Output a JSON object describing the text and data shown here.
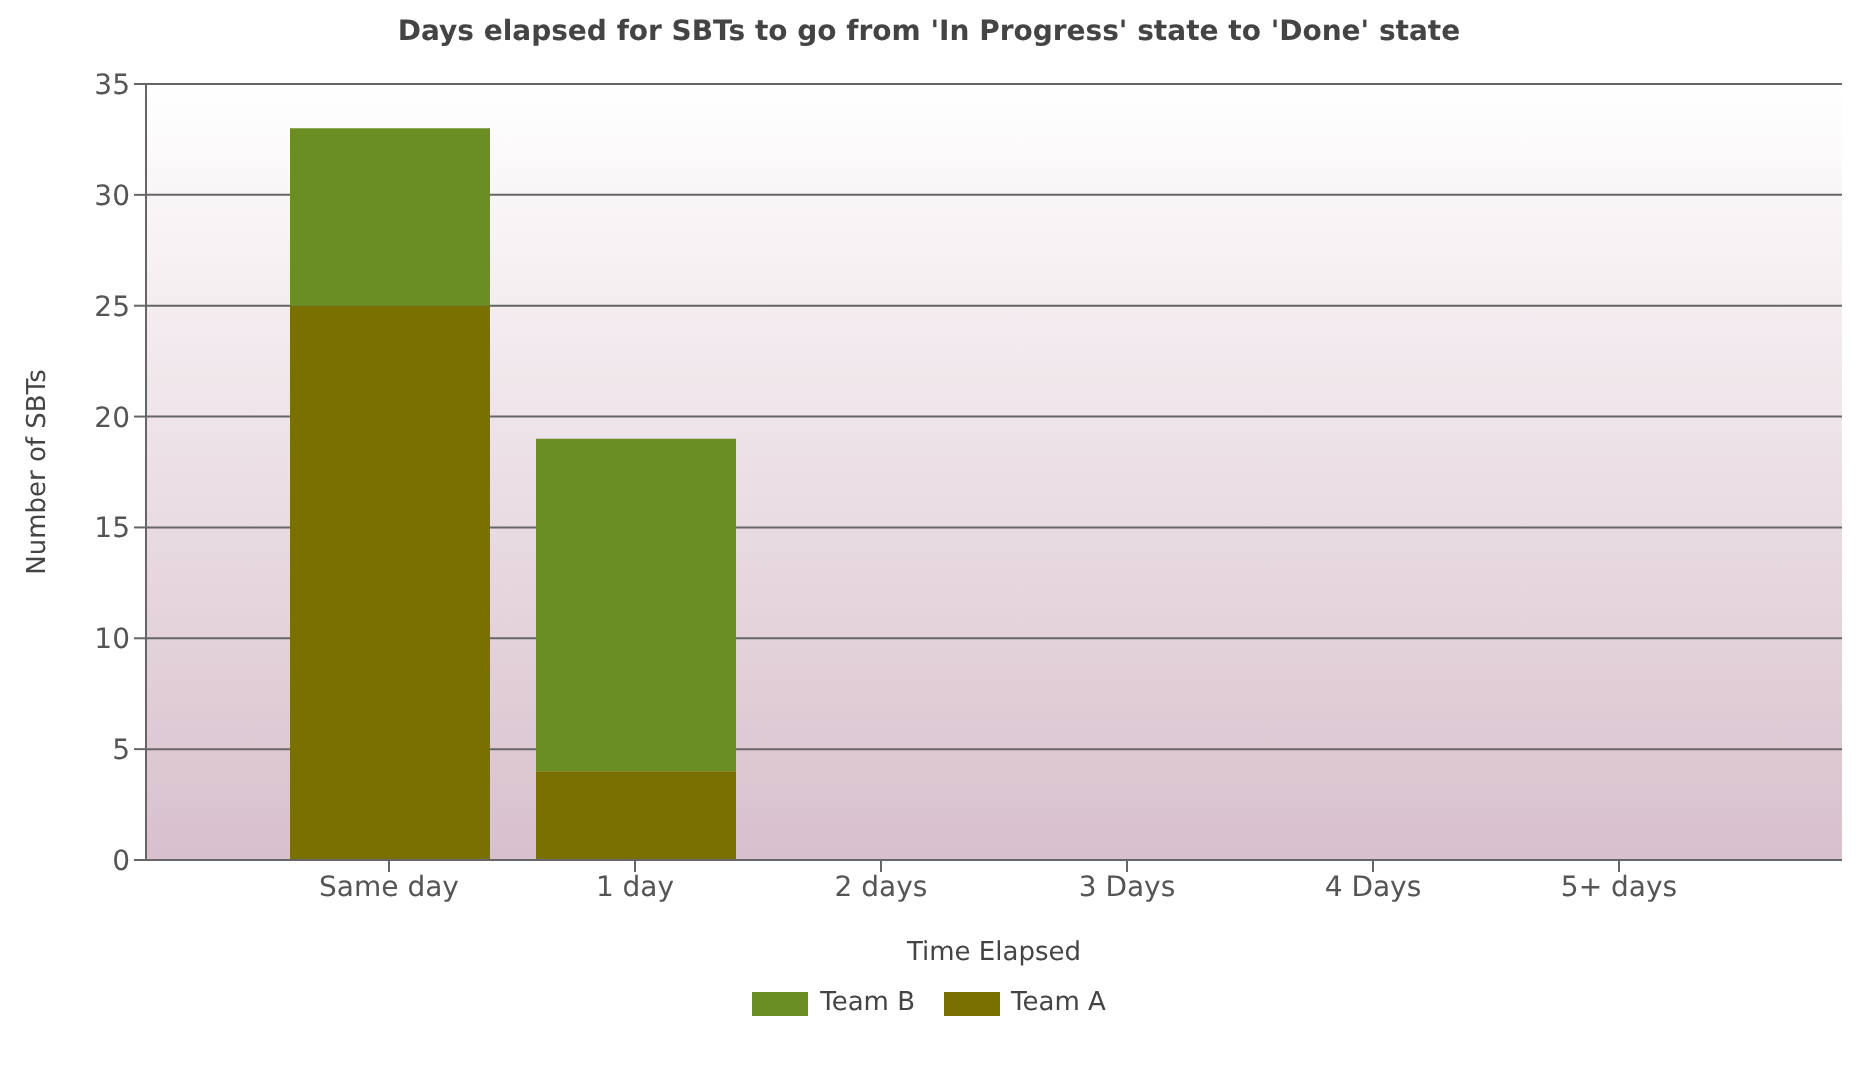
{
  "chart_data": {
    "type": "bar",
    "title": "Days elapsed for SBTs to go from 'In Progress' state to 'Done' state",
    "xlabel": "Time Elapsed",
    "ylabel": "Number of SBTs",
    "categories": [
      "Same day",
      "1 day",
      "2 days",
      "3 Days",
      "4 Days",
      "5+ days"
    ],
    "stacked": true,
    "series": [
      {
        "name": "Team A",
        "color": "#7a7000",
        "values": [
          25,
          4,
          0,
          0,
          0,
          0
        ]
      },
      {
        "name": "Team B",
        "color": "#6b8e23",
        "values": [
          8,
          15,
          0,
          0,
          0,
          0
        ]
      }
    ],
    "ylim": [
      0,
      35
    ],
    "yticks": [
      0,
      5,
      10,
      15,
      20,
      25,
      30,
      35
    ],
    "grid": "y",
    "legend": "bottom"
  }
}
